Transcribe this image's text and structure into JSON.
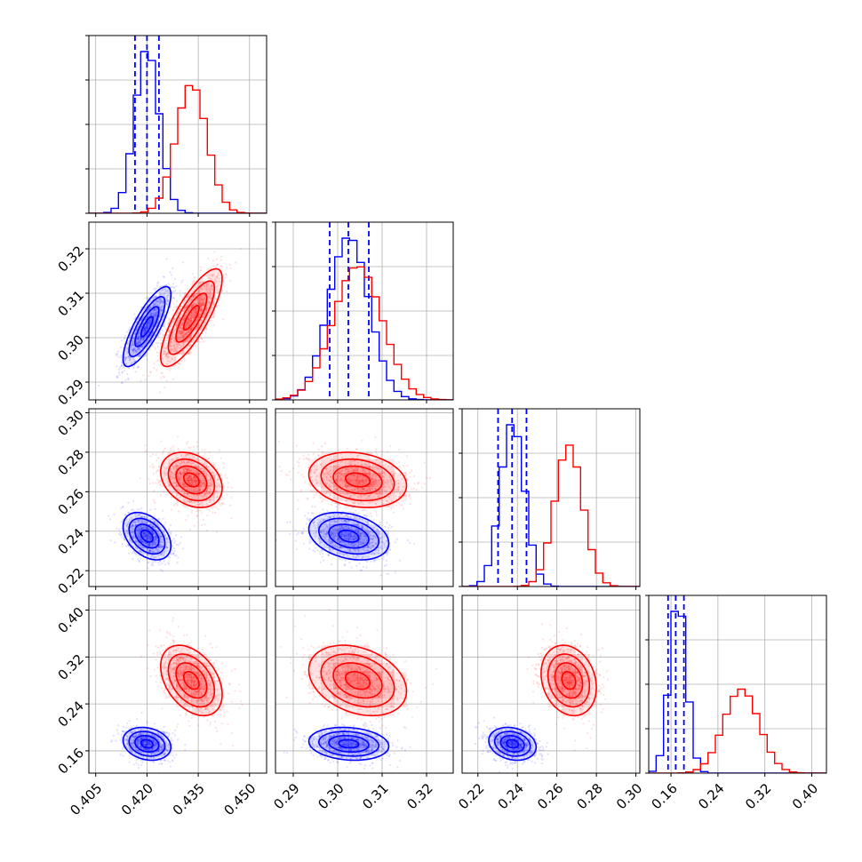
{
  "chart_data": {
    "type": "corner",
    "n_params": 4,
    "colors": {
      "series_a": "#0000ff",
      "series_b": "#ff0000",
      "grid": "#b0b0b0",
      "frame": "#000000"
    },
    "ranges": [
      [
        0.403,
        0.455
      ],
      [
        0.286,
        0.326
      ],
      [
        0.212,
        0.302
      ],
      [
        0.122,
        0.425
      ]
    ],
    "ticks": [
      {
        "values": [
          0.405,
          0.42,
          0.435,
          0.45
        ],
        "labels": [
          "0.405",
          "0.420",
          "0.435",
          "0.450"
        ]
      },
      {
        "values": [
          0.29,
          0.3,
          0.31,
          0.32
        ],
        "labels": [
          "0.29",
          "0.30",
          "0.31",
          "0.32"
        ]
      },
      {
        "values": [
          0.22,
          0.24,
          0.26,
          0.28,
          0.3
        ],
        "labels": [
          "0.22",
          "0.24",
          "0.26",
          "0.28",
          "0.30"
        ]
      },
      {
        "values": [
          0.16,
          0.24,
          0.32,
          0.4
        ],
        "labels": [
          "0.16",
          "0.24",
          "0.32",
          "0.40"
        ]
      }
    ],
    "series": [
      {
        "color": "#0000ff",
        "mean": [
          0.42,
          0.3025,
          0.2375,
          0.172
        ],
        "sd": [
          0.0035,
          0.0045,
          0.006,
          0.014
        ],
        "quantiles": [
          [
            0.4165,
            0.42,
            0.4235
          ],
          [
            0.2982,
            0.3024,
            0.307
          ],
          [
            0.2302,
            0.2373,
            0.2446
          ],
          [
            0.155,
            0.168,
            0.182
          ]
        ],
        "corr": [
          [
            0,
            1,
            0.8
          ],
          [
            0,
            2,
            -0.4
          ],
          [
            0,
            3,
            -0.2
          ],
          [
            1,
            2,
            -0.3
          ],
          [
            1,
            3,
            -0.15
          ],
          [
            2,
            3,
            -0.2
          ]
        ]
      },
      {
        "color": "#ff0000",
        "mean": [
          0.433,
          0.3045,
          0.266,
          0.28
        ],
        "sd": [
          0.0045,
          0.0055,
          0.007,
          0.03
        ],
        "quantiles": [],
        "corr": [
          [
            0,
            1,
            0.8
          ],
          [
            0,
            2,
            -0.3
          ],
          [
            0,
            3,
            -0.4
          ],
          [
            1,
            2,
            -0.2
          ],
          [
            1,
            3,
            -0.3
          ],
          [
            2,
            3,
            -0.2
          ]
        ]
      }
    ]
  }
}
